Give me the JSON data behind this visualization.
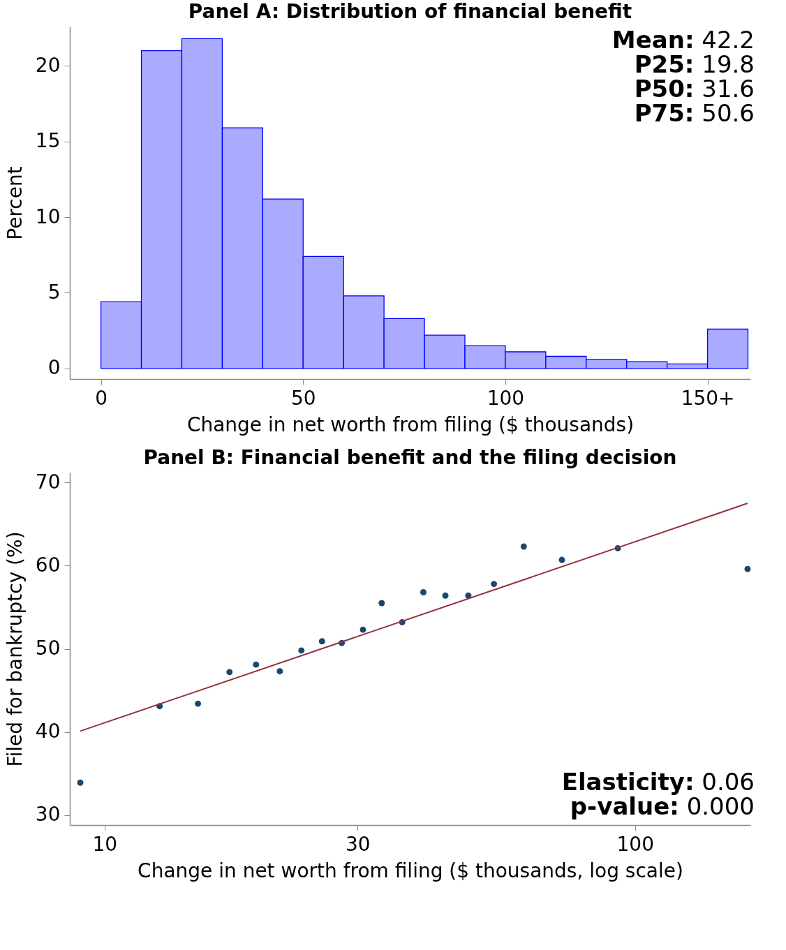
{
  "chart_data": [
    {
      "type": "histogram",
      "title": "Panel A: Distribution of financial benefit",
      "xlabel": "Change in net worth from filing ($ thousands)",
      "ylabel": "Percent",
      "bins": [
        0,
        10,
        20,
        30,
        40,
        50,
        60,
        70,
        80,
        90,
        100,
        110,
        120,
        130,
        140,
        150,
        160
      ],
      "values": [
        4.4,
        21.0,
        21.8,
        15.9,
        11.2,
        7.4,
        4.8,
        3.3,
        2.2,
        1.5,
        1.1,
        0.8,
        0.6,
        0.45,
        0.3,
        2.6
      ],
      "color": "#aaaaff",
      "xlim": [
        -7.7,
        160.6
      ],
      "ylim": [
        -0.7,
        22.6
      ],
      "xticks": [
        0,
        50,
        100,
        {
          "value": 150,
          "label": "150+"
        }
      ],
      "yticks": [
        0,
        5,
        10,
        15,
        20
      ],
      "grid": false,
      "annotations": [
        "Mean: 42.2",
        "P25: 19.8",
        "P50: 31.6",
        "P75: 50.6"
      ]
    },
    {
      "type": "scatter",
      "title": "Panel B: Financial benefit and the filing decision",
      "xlabel": "Change in net worth from filing ($ thousands, log scale)",
      "ylabel": "Filed for bankruptcy (%)",
      "series": [
        {
          "type": "scatter",
          "color": "#1a476f",
          "marker": "circle",
          "x": [
            9.0,
            12.7,
            15.0,
            17.2,
            19.3,
            21.4,
            23.5,
            25.7,
            28.0,
            30.7,
            33.3,
            36.4,
            39.9,
            43.9,
            48.5,
            54.2,
            61.7,
            72.8,
            92.8,
            163
          ],
          "values": [
            33.9,
            43.1,
            43.4,
            47.2,
            48.1,
            47.3,
            49.8,
            50.9,
            50.7,
            52.3,
            55.5,
            53.2,
            56.8,
            56.4,
            56.4,
            57.8,
            62.3,
            60.7,
            62.1,
            59.6
          ]
        },
        {
          "type": "line",
          "color": "#90353b",
          "line_style": "solid",
          "x": [
            9.0,
            163
          ],
          "values": [
            40.1,
            67.5
          ]
        }
      ],
      "log": "x",
      "xlim": [
        8.6,
        165
      ],
      "ylim": [
        28.8,
        71.2
      ],
      "xticks": [
        10,
        30,
        100
      ],
      "yticks": [
        30,
        40,
        50,
        60,
        70
      ],
      "grid": false,
      "annotations": [
        "Elasticity: 0.06",
        "p-value: 0.000"
      ]
    }
  ]
}
